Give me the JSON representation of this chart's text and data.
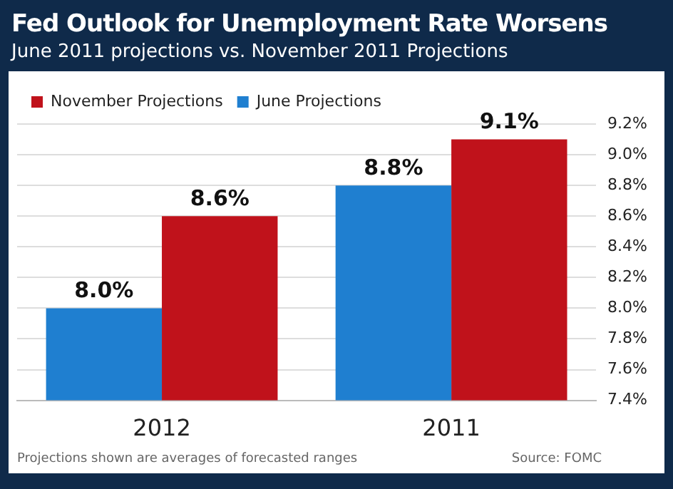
{
  "chart_data": {
    "type": "bar",
    "title": "Fed Outlook for Unemployment Rate Worsens",
    "subtitle": "June 2011 projections vs. November 2011 Projections",
    "categories": [
      "2012",
      "2011"
    ],
    "series": [
      {
        "name": "June Projections",
        "color": "#1f7fd0",
        "values": [
          8.0,
          8.8
        ],
        "value_labels": [
          "8.0%",
          "8.8%"
        ]
      },
      {
        "name": "November Projections",
        "color": "#c0121b",
        "values": [
          8.6,
          9.1
        ],
        "value_labels": [
          "8.6%",
          "9.1%"
        ]
      }
    ],
    "ylim": [
      7.4,
      9.2
    ],
    "yticks": [
      {
        "value": 7.4,
        "label": "7.4%"
      },
      {
        "value": 7.6,
        "label": "7.6%"
      },
      {
        "value": 7.8,
        "label": "7.8%"
      },
      {
        "value": 8.0,
        "label": "8.0%"
      },
      {
        "value": 8.2,
        "label": "8.2%"
      },
      {
        "value": 8.4,
        "label": "8.4%"
      },
      {
        "value": 8.6,
        "label": "8.6%"
      },
      {
        "value": 8.8,
        "label": "8.8%"
      },
      {
        "value": 9.0,
        "label": "9.0%"
      },
      {
        "value": 9.2,
        "label": "9.2%"
      }
    ],
    "grid": "y",
    "legend": "top left",
    "annotations": [
      "Projections shown are averages of forecasted ranges",
      "Source: FOMC"
    ]
  }
}
